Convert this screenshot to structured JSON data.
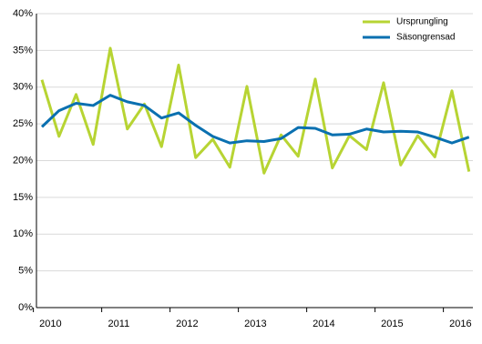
{
  "chart_data": {
    "type": "line",
    "categories": [
      "2010",
      null,
      null,
      null,
      "2011",
      null,
      null,
      null,
      "2012",
      null,
      null,
      null,
      "2013",
      null,
      null,
      null,
      "2014",
      null,
      null,
      null,
      "2015",
      null,
      null,
      null,
      "2016",
      null
    ],
    "series": [
      {
        "name": "Ursprungling",
        "color": "#b7d433",
        "values": [
          31,
          23.3,
          29,
          22.2,
          35.3,
          24.3,
          27.7,
          21.9,
          33,
          20.4,
          22.9,
          19.1,
          30.1,
          18.3,
          23.5,
          20.6,
          31.1,
          19,
          23.4,
          21.5,
          30.6,
          19.4,
          23.4,
          20.5,
          29.5,
          18.5
        ]
      },
      {
        "name": "Säsongrensad",
        "color": "#0a70b0",
        "values": [
          24.6,
          26.8,
          27.8,
          27.5,
          28.9,
          28,
          27.5,
          25.8,
          26.5,
          24.8,
          23.3,
          22.4,
          22.7,
          22.6,
          23,
          24.5,
          24.4,
          23.5,
          23.6,
          24.3,
          23.9,
          24,
          23.9,
          23.2,
          22.4,
          23.2
        ]
      }
    ],
    "ylim": [
      0,
      40
    ],
    "yticks": [
      {
        "value": 0,
        "label": "0%"
      },
      {
        "value": 5,
        "label": "5%"
      },
      {
        "value": 10,
        "label": "10%"
      },
      {
        "value": 15,
        "label": "15%"
      },
      {
        "value": 20,
        "label": "20%"
      },
      {
        "value": 25,
        "label": "25%"
      },
      {
        "value": 30,
        "label": "30%"
      },
      {
        "value": 35,
        "label": "35%"
      },
      {
        "value": 40,
        "label": "40%"
      }
    ],
    "grid": true,
    "legend": "upper right"
  }
}
